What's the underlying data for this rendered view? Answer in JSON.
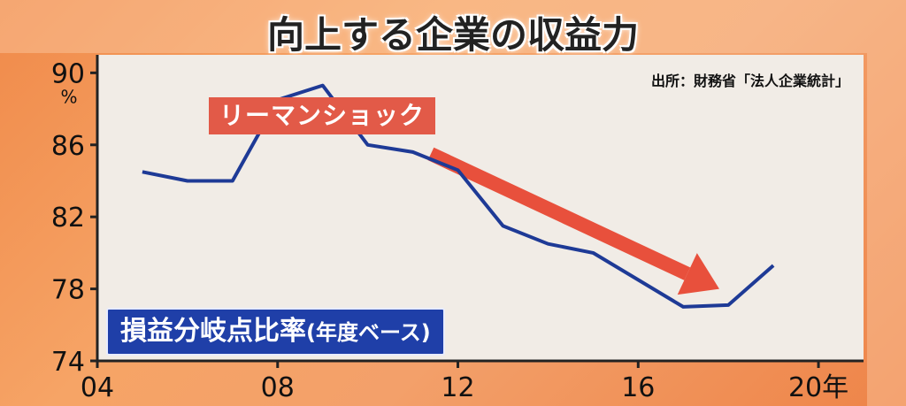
{
  "title": "向上する企業の収益力",
  "source": "出所：財務省「法人企業統計」",
  "annotation": "リーマンショック",
  "metric_label": "損益分岐点比率",
  "metric_sublabel": "(年度ベース)",
  "colors": {
    "line": "#1e3a96",
    "arrow": "#e8503c",
    "plot_bg": "#f1ece6",
    "label_bg": "#1f3fa8"
  },
  "chart_data": {
    "type": "line",
    "title": "向上する企業の収益力",
    "ylabel_unit": "%",
    "xlim": [
      4,
      21
    ],
    "ylim": [
      74,
      91
    ],
    "x_ticks": [
      4,
      8,
      12,
      16,
      20
    ],
    "x_tick_labels": [
      "04",
      "08",
      "12",
      "16",
      "20年"
    ],
    "y_ticks": [
      74,
      78,
      82,
      86,
      90
    ],
    "y_tick_labels": [
      "74",
      "78",
      "82",
      "86",
      "90"
    ],
    "series": [
      {
        "x": [
          5,
          6,
          7,
          8,
          9,
          10,
          11,
          12,
          13,
          14,
          15,
          16,
          17,
          18,
          19
        ],
        "y": [
          84.5,
          84.0,
          84.0,
          88.5,
          89.3,
          86.0,
          85.6,
          84.6,
          81.5,
          80.5,
          80.0,
          78.5,
          77.0,
          77.1,
          79.3
        ]
      }
    ],
    "annotations": [
      {
        "text": "リーマンショック",
        "type": "arrow",
        "from_x": 11.4,
        "from_y": 85.5,
        "to_x": 17.8,
        "to_y": 78.0
      }
    ],
    "grid": false
  }
}
